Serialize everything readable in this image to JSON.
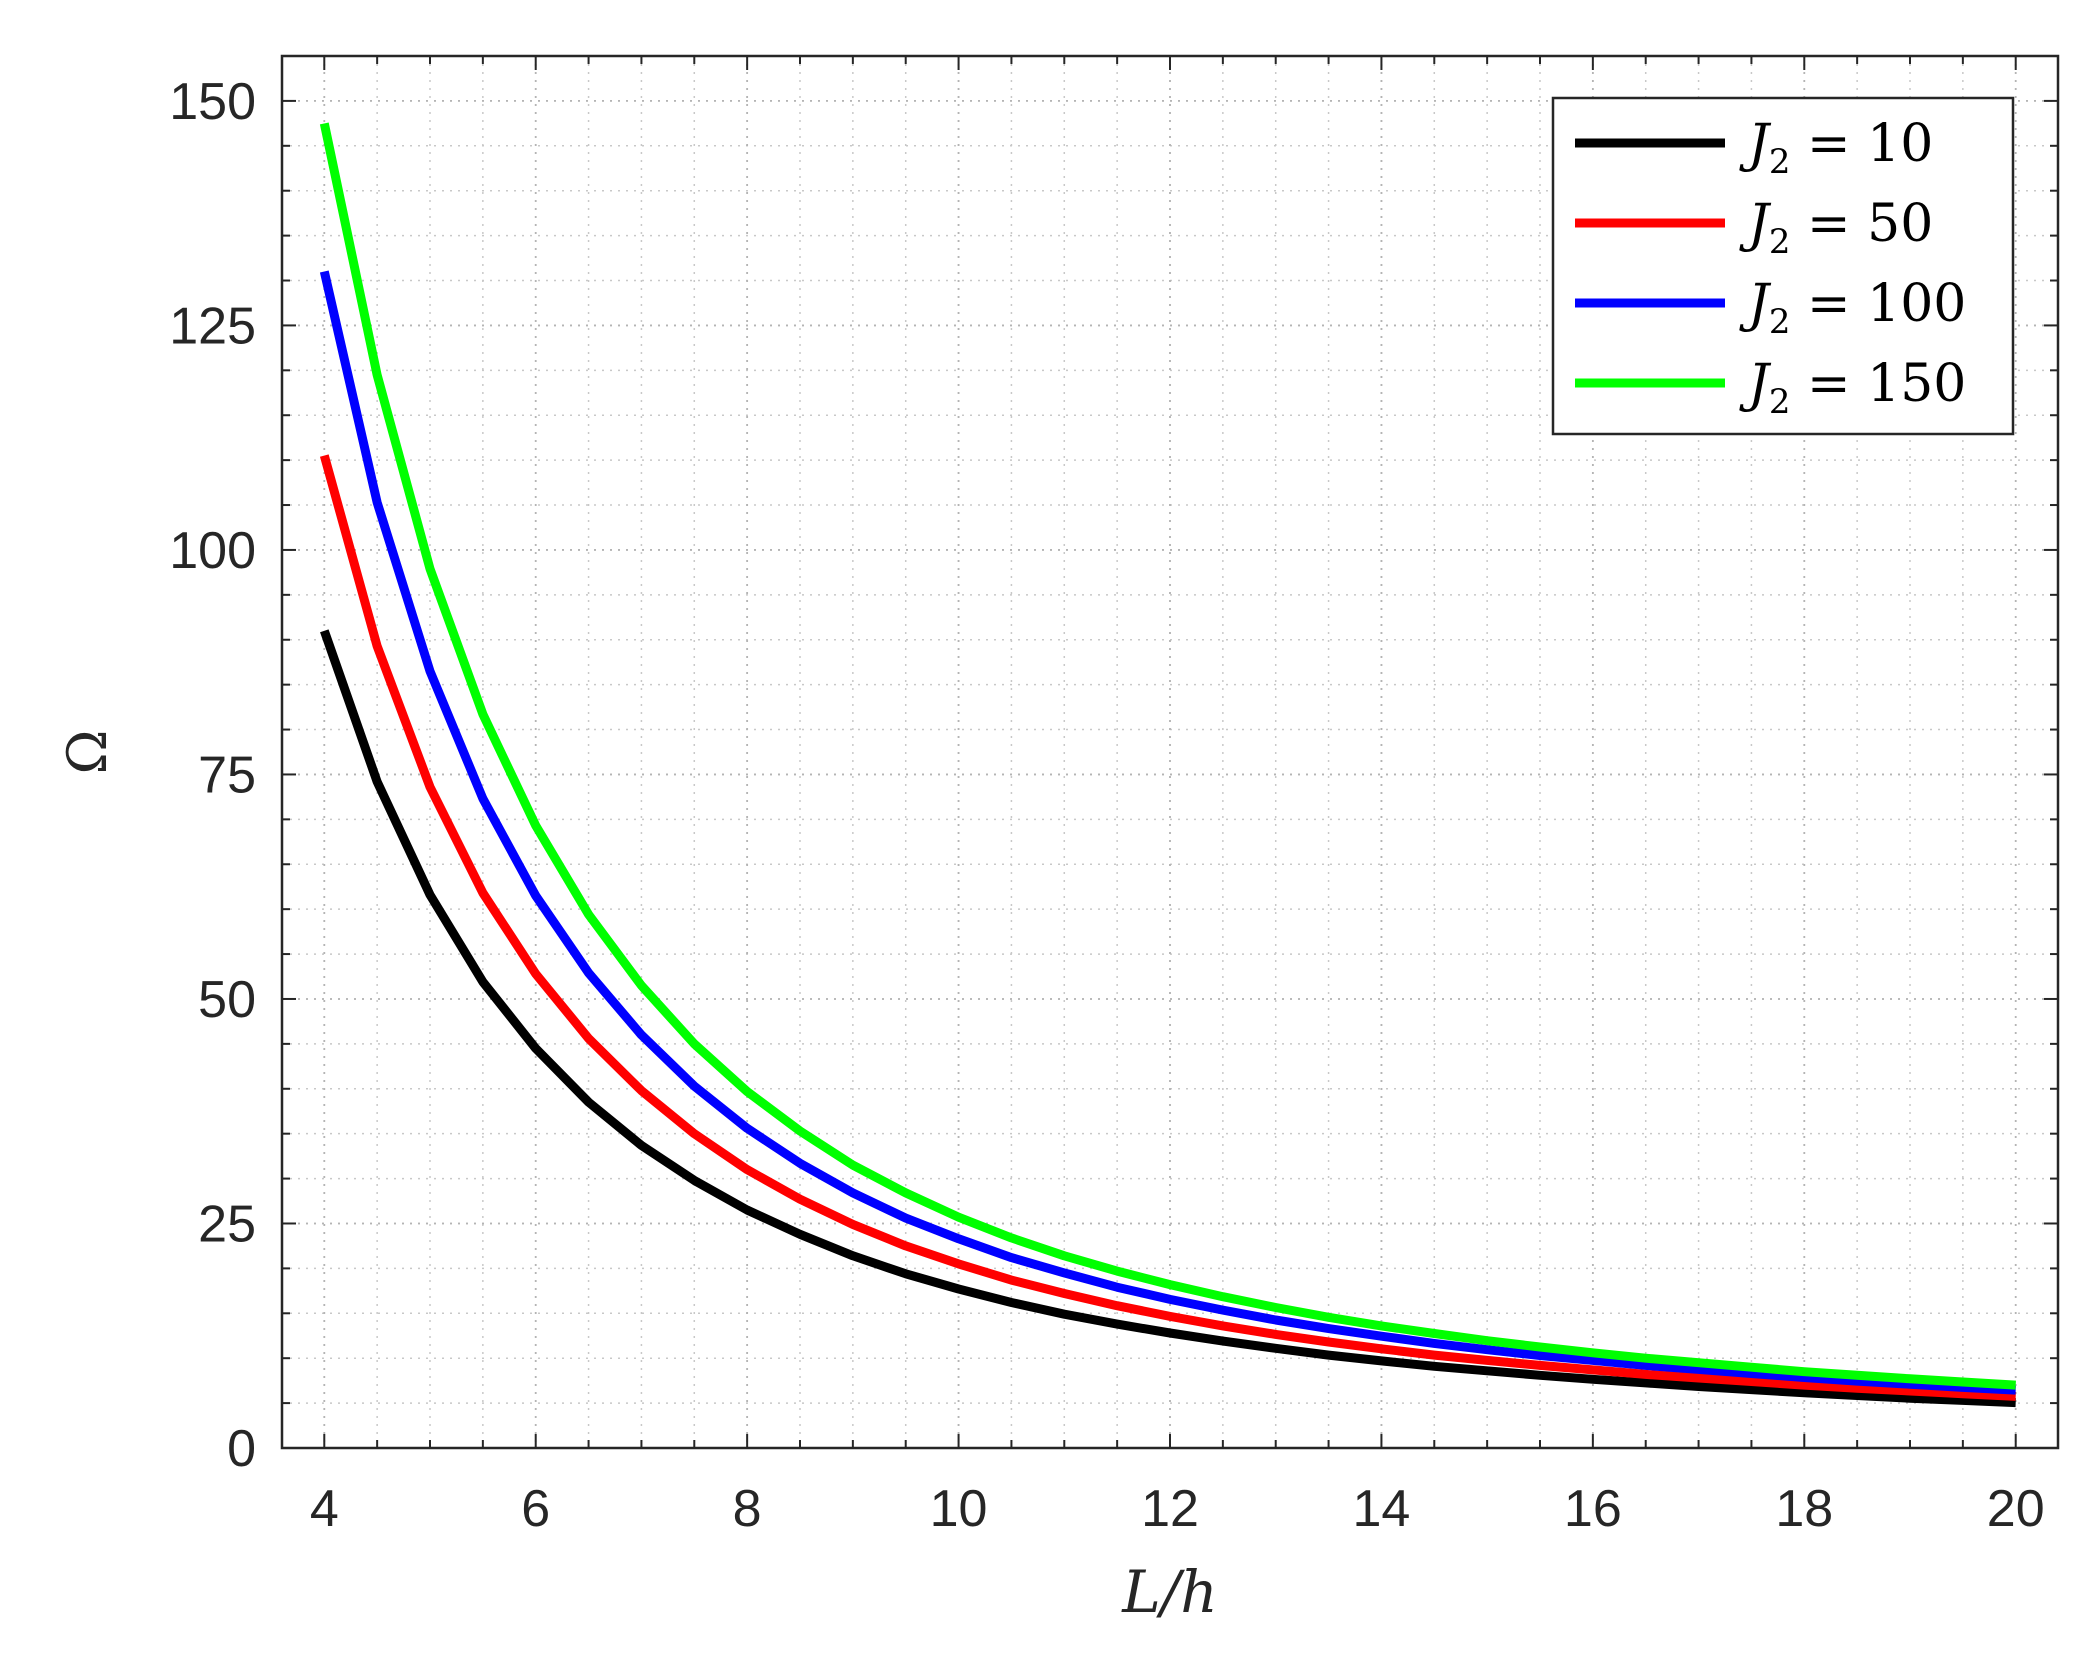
{
  "chart_data": {
    "type": "line",
    "xlabel": "L/h",
    "ylabel": "Ω",
    "xlim": [
      3.6,
      20.4
    ],
    "ylim": [
      0,
      155
    ],
    "xticks": [
      4,
      6,
      8,
      10,
      12,
      14,
      16,
      18,
      20
    ],
    "yticks": [
      0,
      25,
      50,
      75,
      100,
      125,
      150
    ],
    "xtick_labels": [
      "4",
      "6",
      "8",
      "10",
      "12",
      "14",
      "16",
      "18",
      "20"
    ],
    "ytick_labels": [
      "0",
      "25",
      "50",
      "75",
      "100",
      "125",
      "150"
    ],
    "grid": "on (minor dotted)",
    "legend_position": "top-right",
    "x": [
      4,
      4.5,
      5,
      5.5,
      6,
      6.5,
      7,
      7.5,
      8,
      8.5,
      9,
      9.5,
      10,
      10.5,
      11,
      11.5,
      12,
      12.5,
      13,
      13.5,
      14,
      14.5,
      15,
      15.5,
      16,
      16.5,
      17,
      17.5,
      18,
      18.5,
      19,
      19.5,
      20
    ],
    "series": [
      {
        "name": "J_2 = 10",
        "var": "J",
        "sub": "2",
        "value": "10",
        "color": "#000000",
        "values": [
          91,
          74.2,
          61.6,
          51.9,
          44.5,
          38.5,
          33.7,
          29.8,
          26.5,
          23.8,
          21.4,
          19.4,
          17.7,
          16.2,
          14.9,
          13.8,
          12.8,
          11.9,
          11.1,
          10.35,
          9.7,
          9.1,
          8.6,
          8.1,
          7.65,
          7.25,
          6.85,
          6.5,
          6.15,
          5.85,
          5.55,
          5.3,
          5.05
        ]
      },
      {
        "name": "J_2 = 50",
        "var": "J",
        "sub": "2",
        "value": "50",
        "color": "#ff0000",
        "values": [
          110.5,
          89.3,
          73.6,
          61.8,
          52.8,
          45.6,
          39.8,
          35.0,
          31.0,
          27.7,
          24.9,
          22.5,
          20.5,
          18.7,
          17.2,
          15.85,
          14.65,
          13.6,
          12.65,
          11.8,
          11.05,
          10.35,
          9.75,
          9.2,
          8.7,
          8.2,
          7.8,
          7.4,
          7.0,
          6.65,
          6.35,
          6.05,
          5.75
        ]
      },
      {
        "name": "J_2 = 100",
        "var": "J",
        "sub": "2",
        "value": "100",
        "color": "#0000ff",
        "values": [
          131,
          105.3,
          86.5,
          72.3,
          61.5,
          52.9,
          46.0,
          40.3,
          35.6,
          31.7,
          28.4,
          25.6,
          23.3,
          21.2,
          19.5,
          17.9,
          16.55,
          15.35,
          14.25,
          13.3,
          12.45,
          11.65,
          10.95,
          10.3,
          9.75,
          9.2,
          8.75,
          8.3,
          7.85,
          7.45,
          7.1,
          6.75,
          6.45
        ]
      },
      {
        "name": "J_2 = 150",
        "var": "J",
        "sub": "2",
        "value": "150",
        "color": "#00ff00",
        "values": [
          147.5,
          119.5,
          97.9,
          81.7,
          69.3,
          59.4,
          51.5,
          45.0,
          39.7,
          35.3,
          31.5,
          28.4,
          25.7,
          23.4,
          21.4,
          19.7,
          18.2,
          16.85,
          15.65,
          14.55,
          13.6,
          12.75,
          11.95,
          11.25,
          10.6,
          10.0,
          9.5,
          9.0,
          8.5,
          8.1,
          7.7,
          7.35,
          7.0
        ]
      }
    ]
  }
}
